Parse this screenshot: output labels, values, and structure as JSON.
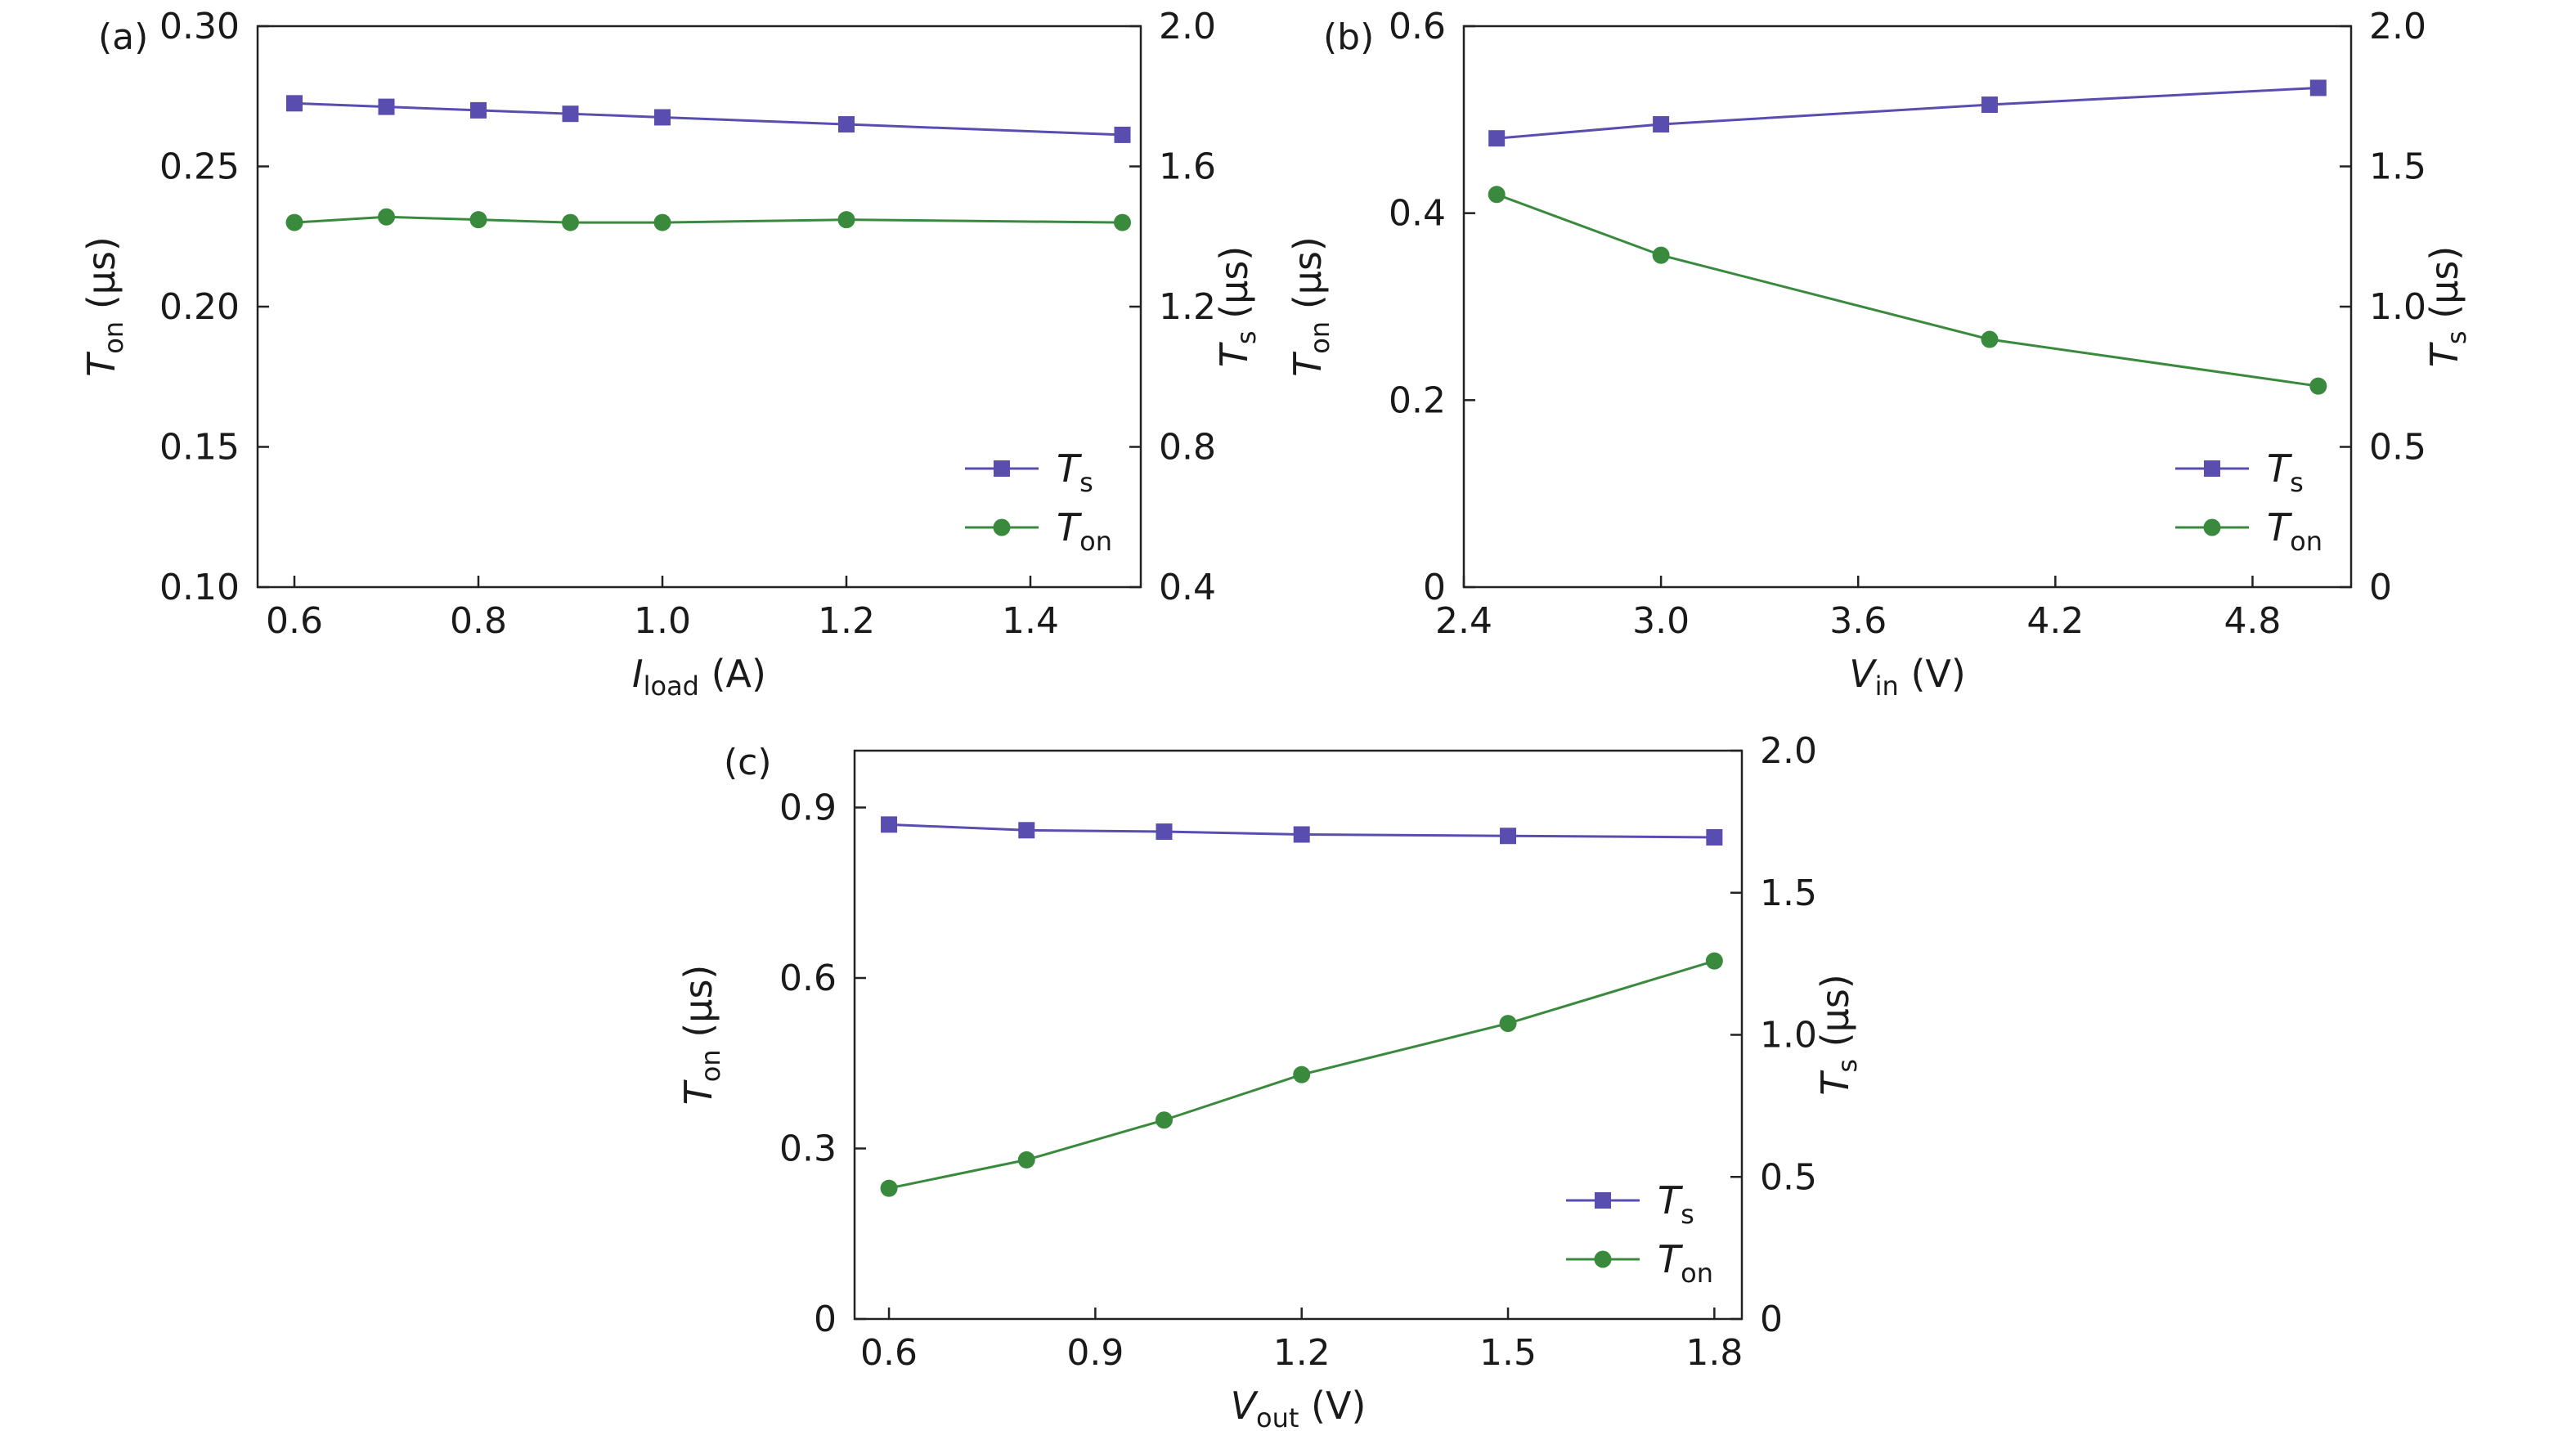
{
  "chart_data": [
    {
      "type": "line",
      "panel_label": "(a)",
      "xlabel": {
        "main": "I",
        "sub": "load",
        "unit": " (A)"
      },
      "ylabel": {
        "main": "T",
        "sub": "on",
        "unit": " (µs)"
      },
      "y2label": {
        "main": "T",
        "sub": "s",
        "unit": " (µs)"
      },
      "xlim": [
        0.56,
        1.52
      ],
      "ylim": [
        0.1,
        0.3
      ],
      "y2lim": [
        0.4,
        2.0
      ],
      "x_ticks": [
        "0.6",
        "0.8",
        "1.0",
        "1.2",
        "1.4"
      ],
      "y_ticks": [
        "0.10",
        "0.15",
        "0.20",
        "0.25",
        "0.30"
      ],
      "y2_ticks": [
        "0.4",
        "0.8",
        "1.2",
        "1.6",
        "2.0"
      ],
      "legend_position": "bottom-right",
      "series": [
        {
          "name": "T",
          "name_sub": "s",
          "axis": "right",
          "marker": "square",
          "color": "#5a4db0",
          "x": [
            0.6,
            0.7,
            0.8,
            0.9,
            1.0,
            1.2,
            1.5
          ],
          "values": [
            1.78,
            1.77,
            1.76,
            1.75,
            1.74,
            1.72,
            1.69
          ]
        },
        {
          "name": "T",
          "name_sub": "on",
          "axis": "left",
          "marker": "circle",
          "color": "#3a8a3e",
          "x": [
            0.6,
            0.7,
            0.8,
            0.9,
            1.0,
            1.2,
            1.5
          ],
          "values": [
            0.23,
            0.232,
            0.231,
            0.23,
            0.23,
            0.231,
            0.23
          ]
        }
      ]
    },
    {
      "type": "line",
      "panel_label": "(b)",
      "xlabel": {
        "main": "V",
        "sub": "in",
        "unit": " (V)"
      },
      "ylabel": {
        "main": "T",
        "sub": "on",
        "unit": " (µs)"
      },
      "y2label": {
        "main": "T",
        "sub": "s",
        "unit": " (µs)"
      },
      "xlim": [
        2.4,
        5.1
      ],
      "ylim": [
        0,
        0.6
      ],
      "y2lim": [
        0,
        2.0
      ],
      "x_ticks": [
        "2.4",
        "3.0",
        "3.6",
        "4.2",
        "4.8"
      ],
      "y_ticks": [
        "0",
        "0.2",
        "0.4",
        "0.6"
      ],
      "y2_ticks": [
        "0",
        "0.5",
        "1.0",
        "1.5",
        "2.0"
      ],
      "legend_position": "bottom-right",
      "series": [
        {
          "name": "T",
          "name_sub": "s",
          "axis": "right",
          "marker": "square",
          "color": "#5a4db0",
          "x": [
            2.5,
            3.0,
            4.0,
            5.0
          ],
          "values": [
            1.6,
            1.65,
            1.72,
            1.78
          ]
        },
        {
          "name": "T",
          "name_sub": "on",
          "axis": "left",
          "marker": "circle",
          "color": "#3a8a3e",
          "x": [
            2.5,
            3.0,
            4.0,
            5.0
          ],
          "values": [
            0.42,
            0.355,
            0.265,
            0.215
          ]
        }
      ]
    },
    {
      "type": "line",
      "panel_label": "(c)",
      "xlabel": {
        "main": "V",
        "sub": "out",
        "unit": " (V)"
      },
      "ylabel": {
        "main": "T",
        "sub": "on",
        "unit": " (µs)"
      },
      "y2label": {
        "main": "T",
        "sub": "s",
        "unit": " (µs)"
      },
      "xlim": [
        0.55,
        1.84
      ],
      "ylim": [
        0,
        1.0
      ],
      "y2lim": [
        0,
        2.0
      ],
      "x_ticks": [
        "0.6",
        "0.9",
        "1.2",
        "1.5",
        "1.8"
      ],
      "y_ticks": [
        "0",
        "0.3",
        "0.6",
        "0.9"
      ],
      "y2_ticks": [
        "0",
        "0.5",
        "1.0",
        "1.5",
        "2.0"
      ],
      "legend_position": "bottom-right",
      "series": [
        {
          "name": "T",
          "name_sub": "s",
          "axis": "right",
          "marker": "square",
          "color": "#5a4db0",
          "x": [
            0.6,
            0.8,
            1.0,
            1.2,
            1.5,
            1.8
          ],
          "values": [
            1.74,
            1.72,
            1.715,
            1.705,
            1.7,
            1.695
          ]
        },
        {
          "name": "T",
          "name_sub": "on",
          "axis": "left",
          "marker": "circle",
          "color": "#3a8a3e",
          "x": [
            0.6,
            0.8,
            1.0,
            1.2,
            1.5,
            1.8
          ],
          "values": [
            0.23,
            0.28,
            0.35,
            0.43,
            0.52,
            0.63
          ]
        }
      ]
    }
  ]
}
